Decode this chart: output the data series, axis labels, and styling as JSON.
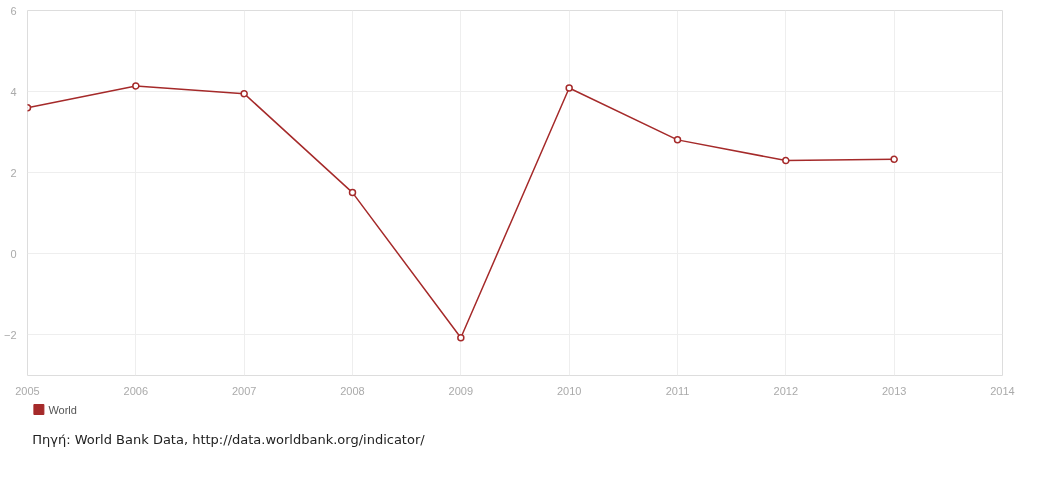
{
  "chart_data": {
    "type": "line",
    "x": [
      2005,
      2006,
      2007,
      2008,
      2009,
      2010,
      2011,
      2012,
      2013
    ],
    "series": [
      {
        "name": "World",
        "color": "#a52a2a",
        "values": [
          3.6,
          4.14,
          3.95,
          1.51,
          -2.07,
          4.09,
          2.81,
          2.3,
          2.33
        ]
      }
    ],
    "xlim": [
      2005,
      2014
    ],
    "xticks": [
      2005,
      2006,
      2007,
      2008,
      2009,
      2010,
      2011,
      2012,
      2013,
      2014
    ],
    "ylim": [
      -3,
      6
    ],
    "yticks": [
      -2,
      0,
      2,
      4,
      6
    ],
    "grid": true,
    "legend": "bottom left",
    "marker": "circle",
    "line_style": "solid",
    "annotations": [
      "Πηγή: World Bank Data, http://data.worldbank.org/indicator/"
    ]
  }
}
